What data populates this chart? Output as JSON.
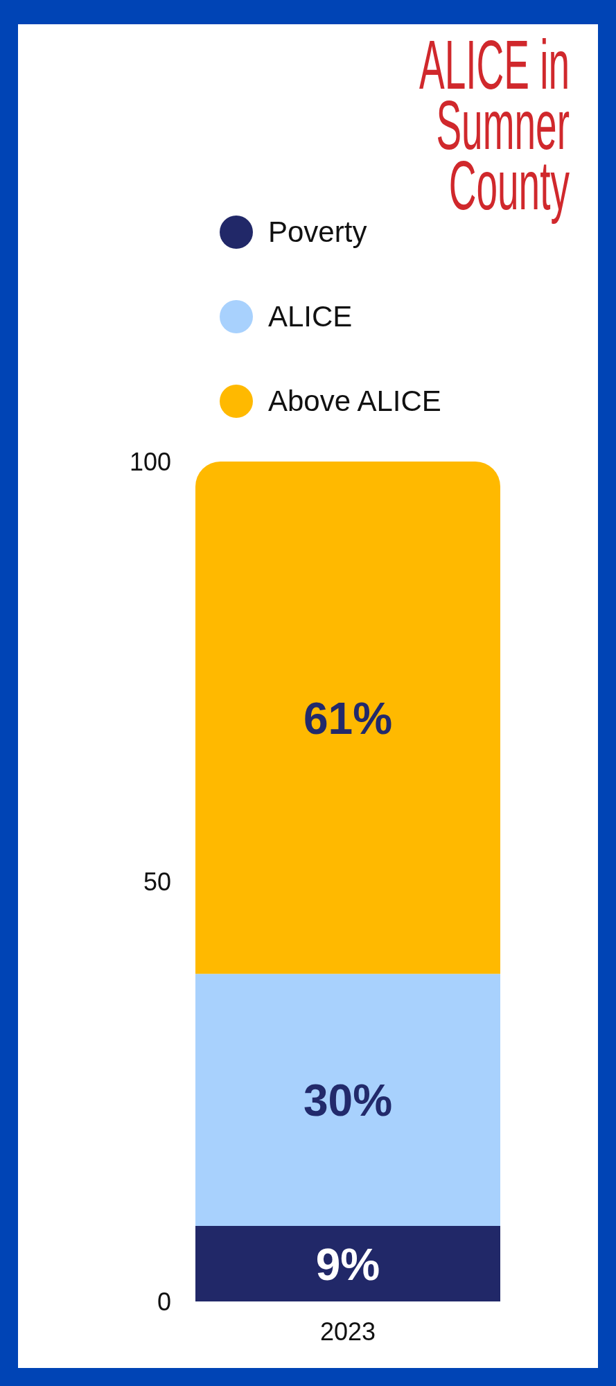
{
  "chart_data": {
    "type": "bar",
    "title": "ALICE in Sumner County",
    "categories": [
      "2023"
    ],
    "series": [
      {
        "name": "Poverty",
        "color": "#212868",
        "values": [
          9
        ],
        "value_labels": [
          "9%"
        ]
      },
      {
        "name": "ALICE",
        "color": "#a8d1fd",
        "values": [
          30
        ],
        "value_labels": [
          "30%"
        ]
      },
      {
        "name": "Above ALICE",
        "color": "#ffb900",
        "values": [
          61
        ],
        "value_labels": [
          "61%"
        ]
      }
    ],
    "stacked": true,
    "ylim": [
      0,
      100
    ],
    "yticks": [
      0,
      50,
      100
    ],
    "legend": "top"
  }
}
